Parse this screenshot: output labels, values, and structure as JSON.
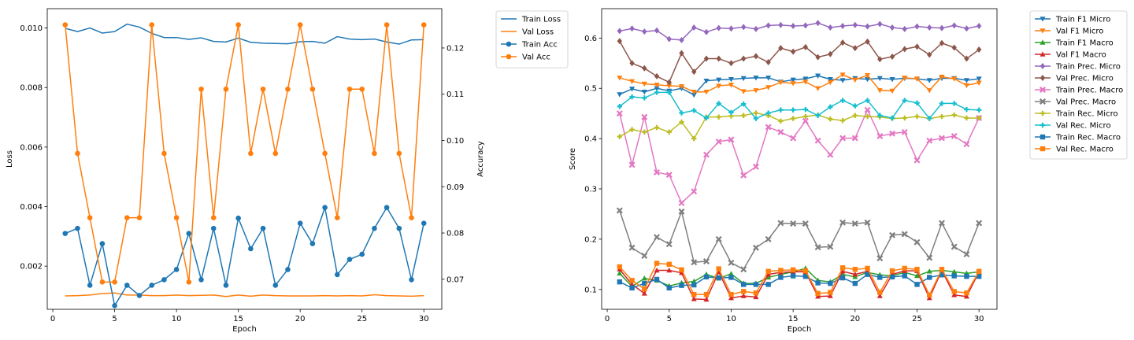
{
  "chart_data": [
    {
      "type": "line",
      "xlabel": "Epoch",
      "ylabel": "Loss",
      "y2label": "Accuracy",
      "xlim": [
        -0.45,
        31.45
      ],
      "xticks": [
        0,
        5,
        10,
        15,
        20,
        25,
        30
      ],
      "ylim": [
        0.00055,
        0.01065
      ],
      "yticks": [
        0.002,
        0.004,
        0.006,
        0.008,
        0.01
      ],
      "y2lim": [
        0.0635,
        0.1285
      ],
      "y2ticks": [
        0.07,
        0.08,
        0.09,
        0.1,
        0.11,
        0.12
      ],
      "legend_position": "outside-top-right",
      "x": [
        1,
        2,
        3,
        4,
        5,
        6,
        7,
        8,
        9,
        10,
        11,
        12,
        13,
        14,
        15,
        16,
        17,
        18,
        19,
        20,
        21,
        22,
        23,
        24,
        25,
        26,
        27,
        28,
        29,
        30
      ],
      "series": [
        {
          "name": "Train Loss",
          "axis": "left",
          "color": "#1f77b4",
          "marker": "none",
          "values": [
            0.00999,
            0.00988,
            0.01,
            0.00983,
            0.00988,
            0.01013,
            0.01003,
            0.00982,
            0.00968,
            0.00968,
            0.00962,
            0.00967,
            0.00955,
            0.00953,
            0.00966,
            0.00952,
            0.00949,
            0.00948,
            0.00947,
            0.00954,
            0.00955,
            0.00949,
            0.00971,
            0.00963,
            0.00961,
            0.00963,
            0.00953,
            0.00946,
            0.0096,
            0.00961
          ]
        },
        {
          "name": "Val Loss",
          "axis": "left",
          "color": "#ff7f0e",
          "marker": "none",
          "values": [
            0.001,
            0.00101,
            0.00103,
            0.00108,
            0.0011,
            0.00103,
            0.00103,
            0.00101,
            0.00101,
            0.00103,
            0.00101,
            0.00102,
            0.00103,
            0.00098,
            0.00103,
            0.00099,
            0.00103,
            0.00101,
            0.001,
            0.001,
            0.001,
            0.00101,
            0.001,
            0.00101,
            0.001,
            0.00104,
            0.00101,
            0.001,
            0.00099,
            0.00101
          ]
        },
        {
          "name": "Train Acc",
          "axis": "right",
          "color": "#1f77b4",
          "marker": "circle",
          "values": [
            0.0799,
            0.081,
            0.0687,
            0.0777,
            0.0643,
            0.0687,
            0.0665,
            0.0687,
            0.0699,
            0.0721,
            0.0799,
            0.0699,
            0.081,
            0.0687,
            0.0832,
            0.0766,
            0.081,
            0.0687,
            0.0721,
            0.0821,
            0.0777,
            0.0855,
            0.071,
            0.0743,
            0.0754,
            0.081,
            0.0855,
            0.081,
            0.0699,
            0.0821
          ]
        },
        {
          "name": "Val Acc",
          "axis": "right",
          "color": "#ff7f0e",
          "marker": "circle",
          "values": [
            0.125,
            0.0972,
            0.0833,
            0.0694,
            0.0694,
            0.0833,
            0.0833,
            0.125,
            0.0972,
            0.0833,
            0.0694,
            0.1111,
            0.0833,
            0.1111,
            0.125,
            0.0972,
            0.1111,
            0.0972,
            0.1111,
            0.125,
            0.1111,
            0.0972,
            0.0833,
            0.1111,
            0.1111,
            0.0972,
            0.125,
            0.0972,
            0.0833,
            0.125
          ]
        }
      ]
    },
    {
      "type": "line",
      "xlabel": "Epoch",
      "ylabel": "Score",
      "xlim": [
        -0.45,
        31.45
      ],
      "xticks": [
        0,
        5,
        10,
        15,
        20,
        25,
        30
      ],
      "ylim": [
        0.0605,
        0.6585
      ],
      "yticks": [
        0.1,
        0.2,
        0.3,
        0.4,
        0.5,
        0.6
      ],
      "legend_position": "outside-top-right",
      "x": [
        1,
        2,
        3,
        4,
        5,
        6,
        7,
        8,
        9,
        10,
        11,
        12,
        13,
        14,
        15,
        16,
        17,
        18,
        19,
        20,
        21,
        22,
        23,
        24,
        25,
        26,
        27,
        28,
        29,
        30
      ],
      "series": [
        {
          "name": "Train F1 Micro",
          "color": "#1f77b4",
          "marker": "triangle-down",
          "values": [
            0.488,
            0.499,
            0.493,
            0.5,
            0.495,
            0.5,
            0.487,
            0.515,
            0.517,
            0.518,
            0.52,
            0.521,
            0.521,
            0.513,
            0.517,
            0.519,
            0.525,
            0.518,
            0.516,
            0.52,
            0.518,
            0.52,
            0.518,
            0.52,
            0.519,
            0.516,
            0.52,
            0.52,
            0.516,
            0.519
          ]
        },
        {
          "name": "Val F1 Micro",
          "color": "#ff7f0e",
          "marker": "triangle-down",
          "values": [
            0.521,
            0.514,
            0.509,
            0.507,
            0.505,
            0.504,
            0.493,
            0.493,
            0.505,
            0.507,
            0.494,
            0.496,
            0.502,
            0.512,
            0.51,
            0.513,
            0.5,
            0.512,
            0.527,
            0.517,
            0.526,
            0.496,
            0.495,
            0.521,
            0.519,
            0.496,
            0.523,
            0.519,
            0.506,
            0.511
          ]
        },
        {
          "name": "Train F1 Macro",
          "color": "#2ca02c",
          "marker": "triangle-up",
          "values": [
            0.132,
            0.106,
            0.122,
            0.118,
            0.107,
            0.113,
            0.116,
            0.13,
            0.122,
            0.131,
            0.112,
            0.112,
            0.124,
            0.13,
            0.135,
            0.142,
            0.118,
            0.115,
            0.13,
            0.125,
            0.134,
            0.129,
            0.127,
            0.134,
            0.127,
            0.136,
            0.138,
            0.135,
            0.132,
            0.135
          ]
        },
        {
          "name": "Val F1 Macro",
          "color": "#d62728",
          "marker": "triangle-up",
          "values": [
            0.14,
            0.11,
            0.092,
            0.138,
            0.138,
            0.133,
            0.081,
            0.08,
            0.135,
            0.083,
            0.087,
            0.085,
            0.13,
            0.134,
            0.135,
            0.135,
            0.086,
            0.087,
            0.136,
            0.13,
            0.136,
            0.087,
            0.13,
            0.137,
            0.137,
            0.083,
            0.138,
            0.089,
            0.086,
            0.135
          ]
        },
        {
          "name": "Train Prec. Micro",
          "color": "#9467bd",
          "marker": "diamond",
          "values": [
            0.614,
            0.619,
            0.613,
            0.615,
            0.598,
            0.596,
            0.621,
            0.612,
            0.62,
            0.619,
            0.622,
            0.618,
            0.625,
            0.626,
            0.624,
            0.625,
            0.63,
            0.621,
            0.624,
            0.626,
            0.623,
            0.628,
            0.621,
            0.618,
            0.623,
            0.621,
            0.62,
            0.625,
            0.619,
            0.624
          ]
        },
        {
          "name": "Val Prec. Micro",
          "color": "#8c564b",
          "marker": "diamond",
          "values": [
            0.594,
            0.55,
            0.54,
            0.524,
            0.512,
            0.57,
            0.533,
            0.559,
            0.559,
            0.55,
            0.559,
            0.564,
            0.552,
            0.58,
            0.573,
            0.582,
            0.562,
            0.568,
            0.591,
            0.58,
            0.593,
            0.558,
            0.563,
            0.578,
            0.583,
            0.567,
            0.59,
            0.581,
            0.559,
            0.577
          ]
        },
        {
          "name": "Train Prec. Macro",
          "color": "#e377c2",
          "marker": "x",
          "values": [
            0.45,
            0.348,
            0.443,
            0.333,
            0.328,
            0.272,
            0.295,
            0.368,
            0.394,
            0.398,
            0.327,
            0.344,
            0.423,
            0.413,
            0.401,
            0.435,
            0.396,
            0.368,
            0.401,
            0.401,
            0.457,
            0.405,
            0.41,
            0.413,
            0.357,
            0.396,
            0.401,
            0.405,
            0.389,
            0.441
          ]
        },
        {
          "name": "Val Prec. Macro",
          "color": "#7f7f7f",
          "marker": "x",
          "values": [
            0.257,
            0.183,
            0.167,
            0.204,
            0.19,
            0.255,
            0.154,
            0.156,
            0.2,
            0.153,
            0.14,
            0.183,
            0.2,
            0.232,
            0.231,
            0.231,
            0.184,
            0.185,
            0.233,
            0.231,
            0.233,
            0.162,
            0.208,
            0.21,
            0.194,
            0.163,
            0.232,
            0.185,
            0.17,
            0.232
          ]
        },
        {
          "name": "Train Rec. Micro",
          "color": "#bcbd22",
          "marker": "plus",
          "values": [
            0.404,
            0.418,
            0.413,
            0.422,
            0.413,
            0.433,
            0.4,
            0.443,
            0.443,
            0.445,
            0.446,
            0.451,
            0.446,
            0.435,
            0.44,
            0.444,
            0.447,
            0.439,
            0.436,
            0.446,
            0.444,
            0.443,
            0.44,
            0.441,
            0.444,
            0.44,
            0.444,
            0.447,
            0.441,
            0.441
          ]
        },
        {
          "name": "Val Rec. Micro",
          "color": "#17becf",
          "marker": "plus",
          "values": [
            0.464,
            0.483,
            0.481,
            0.492,
            0.492,
            0.451,
            0.456,
            0.441,
            0.47,
            0.452,
            0.469,
            0.44,
            0.451,
            0.457,
            0.457,
            0.458,
            0.446,
            0.463,
            0.476,
            0.465,
            0.476,
            0.446,
            0.441,
            0.476,
            0.471,
            0.44,
            0.47,
            0.47,
            0.458,
            0.457
          ]
        },
        {
          "name": "Train Rec. Macro",
          "color": "#1f77b4",
          "marker": "square",
          "values": [
            0.115,
            0.103,
            0.112,
            0.12,
            0.103,
            0.108,
            0.109,
            0.125,
            0.123,
            0.124,
            0.11,
            0.11,
            0.11,
            0.124,
            0.127,
            0.126,
            0.113,
            0.112,
            0.123,
            0.112,
            0.13,
            0.124,
            0.125,
            0.127,
            0.11,
            0.124,
            0.129,
            0.127,
            0.126,
            0.126
          ]
        },
        {
          "name": "Val Rec. Macro",
          "color": "#ff7f0e",
          "marker": "square",
          "values": [
            0.145,
            0.118,
            0.101,
            0.152,
            0.15,
            0.139,
            0.09,
            0.09,
            0.141,
            0.09,
            0.096,
            0.093,
            0.136,
            0.138,
            0.139,
            0.137,
            0.092,
            0.094,
            0.143,
            0.14,
            0.142,
            0.094,
            0.137,
            0.142,
            0.14,
            0.089,
            0.14,
            0.096,
            0.093,
            0.136
          ]
        }
      ]
    }
  ]
}
